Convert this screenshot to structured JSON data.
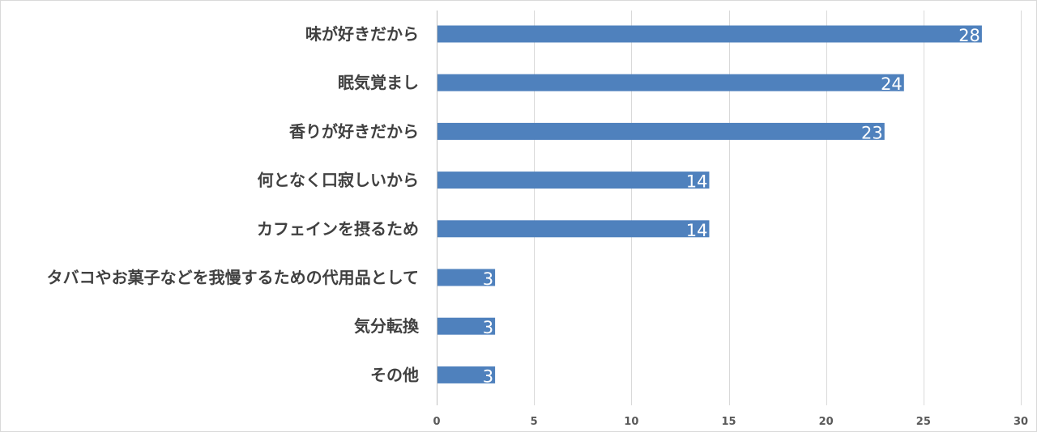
{
  "chart_data": {
    "type": "bar",
    "orientation": "horizontal",
    "categories": [
      "味が好きだから",
      "眠気覚まし",
      "香りが好きだから",
      "何となく口寂しいから",
      "カフェインを摂るため",
      "タバコやお菓子などを我慢するための代用品として",
      "気分転換",
      "その他"
    ],
    "values": [
      28,
      24,
      23,
      14,
      14,
      3,
      3,
      3
    ],
    "xlim": [
      0,
      30
    ],
    "x_ticks": [
      0,
      5,
      10,
      15,
      20,
      25,
      30
    ],
    "grid": true,
    "legend": "none",
    "data_labels": true,
    "bar_color": "#4f81bd",
    "title": "",
    "xlabel": "",
    "ylabel": ""
  }
}
